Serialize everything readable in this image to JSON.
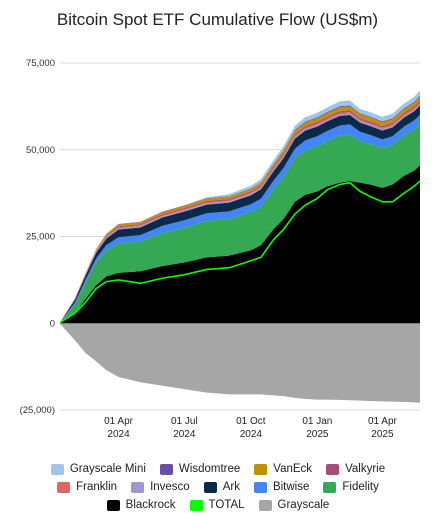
{
  "chart_data": {
    "type": "area",
    "title": "Bitcoin Spot ETF Cumulative Flow (US$m)",
    "xlabel": "",
    "ylabel": "",
    "ylim": [
      -25000,
      75000
    ],
    "y_ticks": [
      "75,000",
      "50,000",
      "25,000",
      "0",
      "(25,000)"
    ],
    "y_tick_values": [
      75000,
      50000,
      25000,
      0,
      -25000
    ],
    "x_ticks": [
      {
        "date": "2024-04-01",
        "line1": "01 Apr",
        "line2": "2024"
      },
      {
        "date": "2024-07-01",
        "line1": "01 Jul",
        "line2": "2024"
      },
      {
        "date": "2024-10-01",
        "line1": "01 Oct",
        "line2": "2024"
      },
      {
        "date": "2025-01-01",
        "line1": "01 Jan",
        "line2": "2025"
      },
      {
        "date": "2025-04-01",
        "line1": "01 Apr",
        "line2": "2025"
      }
    ],
    "xlim": [
      "2024-01-11",
      "2025-05-23"
    ],
    "grid": "horizontal",
    "legend_position": "bottom",
    "x": [
      "2024-01-11",
      "2024-02-01",
      "2024-02-15",
      "2024-03-01",
      "2024-03-15",
      "2024-04-01",
      "2024-05-01",
      "2024-06-01",
      "2024-07-01",
      "2024-08-01",
      "2024-09-01",
      "2024-10-01",
      "2024-10-15",
      "2024-11-01",
      "2024-11-15",
      "2024-12-01",
      "2024-12-15",
      "2025-01-01",
      "2025-01-15",
      "2025-02-01",
      "2025-02-15",
      "2025-03-01",
      "2025-03-15",
      "2025-04-01",
      "2025-04-15",
      "2025-05-01",
      "2025-05-15",
      "2025-05-23"
    ],
    "series": [
      {
        "name": "Blackrock",
        "color": "#000000",
        "values": [
          100,
          3000,
          7000,
          11000,
          13500,
          14500,
          15000,
          16500,
          17500,
          19000,
          19500,
          21000,
          22500,
          27000,
          30000,
          35000,
          37000,
          38000,
          39500,
          40500,
          41000,
          40500,
          40000,
          39000,
          40000,
          42500,
          44000,
          45500
        ]
      },
      {
        "name": "Fidelity",
        "color": "#34a853",
        "values": [
          50,
          2500,
          4500,
          6500,
          7500,
          8500,
          8500,
          9500,
          10000,
          10500,
          10500,
          11000,
          11000,
          11500,
          12000,
          12500,
          12800,
          13000,
          13000,
          13500,
          13300,
          12000,
          11700,
          11500,
          11400,
          11600,
          11800,
          11900
        ]
      },
      {
        "name": "Bitwise",
        "color": "#4285f4",
        "values": [
          20,
          600,
          900,
          1200,
          1500,
          1800,
          1900,
          2100,
          2200,
          2200,
          2250,
          2300,
          2400,
          2500,
          2700,
          2800,
          2850,
          2900,
          2950,
          3000,
          3000,
          2700,
          2600,
          2500,
          2500,
          2600,
          2650,
          2700
        ]
      },
      {
        "name": "Ark",
        "color": "#0b2a4a",
        "values": [
          20,
          800,
          1200,
          1600,
          1900,
          2200,
          2200,
          2400,
          2500,
          2500,
          2500,
          2600,
          2700,
          2700,
          2800,
          2900,
          2850,
          2800,
          2750,
          2750,
          2700,
          2600,
          2550,
          2550,
          2550,
          2600,
          2650,
          2700
        ]
      },
      {
        "name": "Invesco",
        "color": "#9f97d3",
        "values": [
          5,
          150,
          200,
          250,
          300,
          350,
          350,
          350,
          350,
          350,
          360,
          370,
          380,
          390,
          400,
          410,
          410,
          410,
          410,
          410,
          410,
          400,
          400,
          390,
          390,
          400,
          400,
          400
        ]
      },
      {
        "name": "Franklin",
        "color": "#e06666",
        "values": [
          5,
          100,
          150,
          200,
          250,
          300,
          300,
          320,
          330,
          340,
          350,
          360,
          380,
          400,
          420,
          440,
          450,
          460,
          470,
          480,
          480,
          470,
          470,
          460,
          460,
          470,
          480,
          490
        ]
      },
      {
        "name": "Valkyrie",
        "color": "#a64d79",
        "values": [
          5,
          100,
          150,
          200,
          250,
          300,
          320,
          340,
          350,
          360,
          360,
          370,
          380,
          400,
          420,
          440,
          450,
          460,
          460,
          470,
          470,
          460,
          460,
          450,
          450,
          460,
          470,
          480
        ]
      },
      {
        "name": "VanEck",
        "color": "#bf9000",
        "values": [
          5,
          100,
          150,
          300,
          450,
          550,
          550,
          580,
          600,
          620,
          640,
          660,
          700,
          800,
          900,
          1000,
          1050,
          1100,
          1100,
          1150,
          1150,
          1100,
          1100,
          1080,
          1080,
          1100,
          1120,
          1150
        ]
      },
      {
        "name": "Wisdomtree",
        "color": "#674ea7",
        "values": [
          2,
          20,
          40,
          60,
          80,
          100,
          110,
          120,
          130,
          140,
          150,
          160,
          170,
          190,
          210,
          230,
          240,
          250,
          260,
          270,
          270,
          260,
          260,
          250,
          250,
          260,
          270,
          280
        ]
      },
      {
        "name": "Grayscale Mini",
        "color": "#9fc5e8",
        "values": [
          0,
          0,
          0,
          0,
          0,
          0,
          0,
          0,
          0,
          300,
          600,
          800,
          900,
          1000,
          1100,
          1200,
          1250,
          1300,
          1350,
          1400,
          1400,
          1300,
          1300,
          1300,
          1300,
          1350,
          1400,
          1450
        ]
      },
      {
        "name": "Grayscale",
        "color": "#a6a6a6",
        "values": [
          -100,
          -5000,
          -8500,
          -11000,
          -13500,
          -15500,
          -17000,
          -18000,
          -19000,
          -20000,
          -20500,
          -20500,
          -20500,
          -20800,
          -21000,
          -21500,
          -21800,
          -22000,
          -22000,
          -22100,
          -22200,
          -22300,
          -22400,
          -22500,
          -22600,
          -22700,
          -22800,
          -22900
        ]
      },
      {
        "name": "TOTAL",
        "color": "#00ff00",
        "type": "line",
        "values": [
          200,
          3000,
          6000,
          10000,
          12000,
          12500,
          11500,
          13000,
          14000,
          15500,
          16000,
          18000,
          19000,
          24000,
          27000,
          31500,
          34000,
          36000,
          38500,
          40000,
          40500,
          38000,
          36500,
          35000,
          35000,
          37500,
          39500,
          41000
        ]
      }
    ]
  },
  "legend": {
    "rows": [
      [
        {
          "label": "Grayscale Mini",
          "color": "#9fc5e8"
        },
        {
          "label": "Wisdomtree",
          "color": "#674ea7"
        },
        {
          "label": "VanEck",
          "color": "#bf9000"
        },
        {
          "label": "Valkyrie",
          "color": "#a64d79"
        }
      ],
      [
        {
          "label": "Franklin",
          "color": "#e06666"
        },
        {
          "label": "Invesco",
          "color": "#9f97d3"
        },
        {
          "label": "Ark",
          "color": "#0b2a4a"
        },
        {
          "label": "Bitwise",
          "color": "#4285f4"
        },
        {
          "label": "Fidelity",
          "color": "#34a853"
        }
      ],
      [
        {
          "label": "Blackrock",
          "color": "#000000"
        },
        {
          "label": "TOTAL",
          "color": "#00ff00"
        },
        {
          "label": "Grayscale",
          "color": "#a6a6a6"
        }
      ]
    ]
  }
}
